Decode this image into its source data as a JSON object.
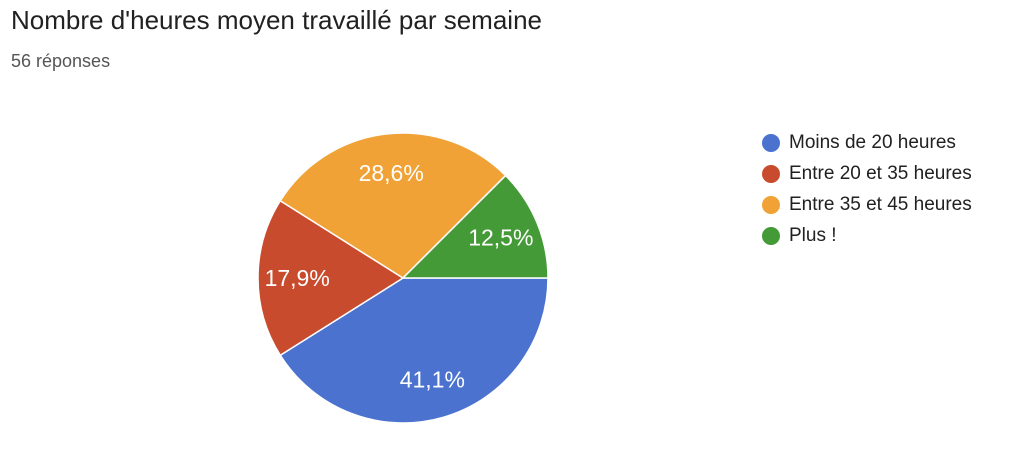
{
  "page": {
    "background": "#ffffff"
  },
  "chart_data": {
    "type": "pie",
    "title": "Nombre d'heures moyen travaillé par semaine",
    "subtitle": "56 réponses",
    "responses_count": 56,
    "legend_position": "right",
    "start_angle_deg": 0,
    "direction": "clockwise",
    "slice_border_color": "#ffffff",
    "slice_label_color": "#ffffff",
    "slices": [
      {
        "label": "Moins de 20 heures",
        "percent": 41.1,
        "percent_label": "41,1%",
        "color": "#4A72CE"
      },
      {
        "label": "Entre 20 et 35 heures",
        "percent": 17.9,
        "percent_label": "17,9%",
        "color": "#C84B2D"
      },
      {
        "label": "Entre 35 et 45 heures",
        "percent": 28.6,
        "percent_label": "28,6%",
        "color": "#F0A236"
      },
      {
        "label": "Plus !",
        "percent": 12.5,
        "percent_label": "12,5%",
        "color": "#459A38"
      }
    ]
  }
}
